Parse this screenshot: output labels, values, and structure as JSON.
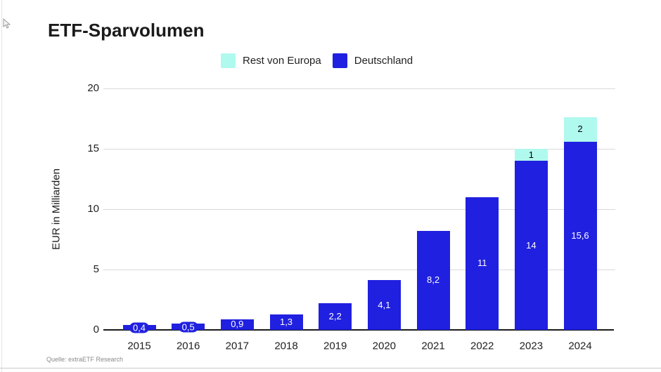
{
  "page": {
    "title": "ETF-Sparvolumen",
    "source": "Quelle: extraETF Research"
  },
  "legend": {
    "items": [
      {
        "label": "Rest von Europa",
        "color": "#b0f9ee"
      },
      {
        "label": "Deutschland",
        "color": "#2020e0"
      }
    ]
  },
  "chart_data": {
    "type": "bar",
    "stacked": true,
    "title": "ETF-Sparvolumen",
    "categories": [
      "2015",
      "2016",
      "2017",
      "2018",
      "2019",
      "2020",
      "2021",
      "2022",
      "2023",
      "2024"
    ],
    "series": [
      {
        "name": "Deutschland",
        "color": "#2020e0",
        "label_color": "#ffffff",
        "values": [
          0.4,
          0.5,
          0.9,
          1.3,
          2.2,
          4.1,
          8.2,
          11,
          14,
          15.6
        ],
        "labels": [
          "0,4",
          "0,5",
          "0,9",
          "1,3",
          "2,2",
          "4,1",
          "8,2",
          "11",
          "14",
          "15,6"
        ]
      },
      {
        "name": "Rest von Europa",
        "color": "#b0f9ee",
        "label_color": "#000000",
        "values": [
          0,
          0,
          0,
          0,
          0,
          0,
          0,
          0,
          1,
          2
        ],
        "labels": [
          "",
          "",
          "",
          "",
          "",
          "",
          "",
          "",
          "1",
          "2"
        ]
      }
    ],
    "xlabel": "",
    "ylabel": "EUR in Milliarden",
    "yticks": [
      0,
      5,
      10,
      15,
      20
    ],
    "ylim": [
      0,
      20
    ],
    "grid": true,
    "legend_position": "top"
  }
}
